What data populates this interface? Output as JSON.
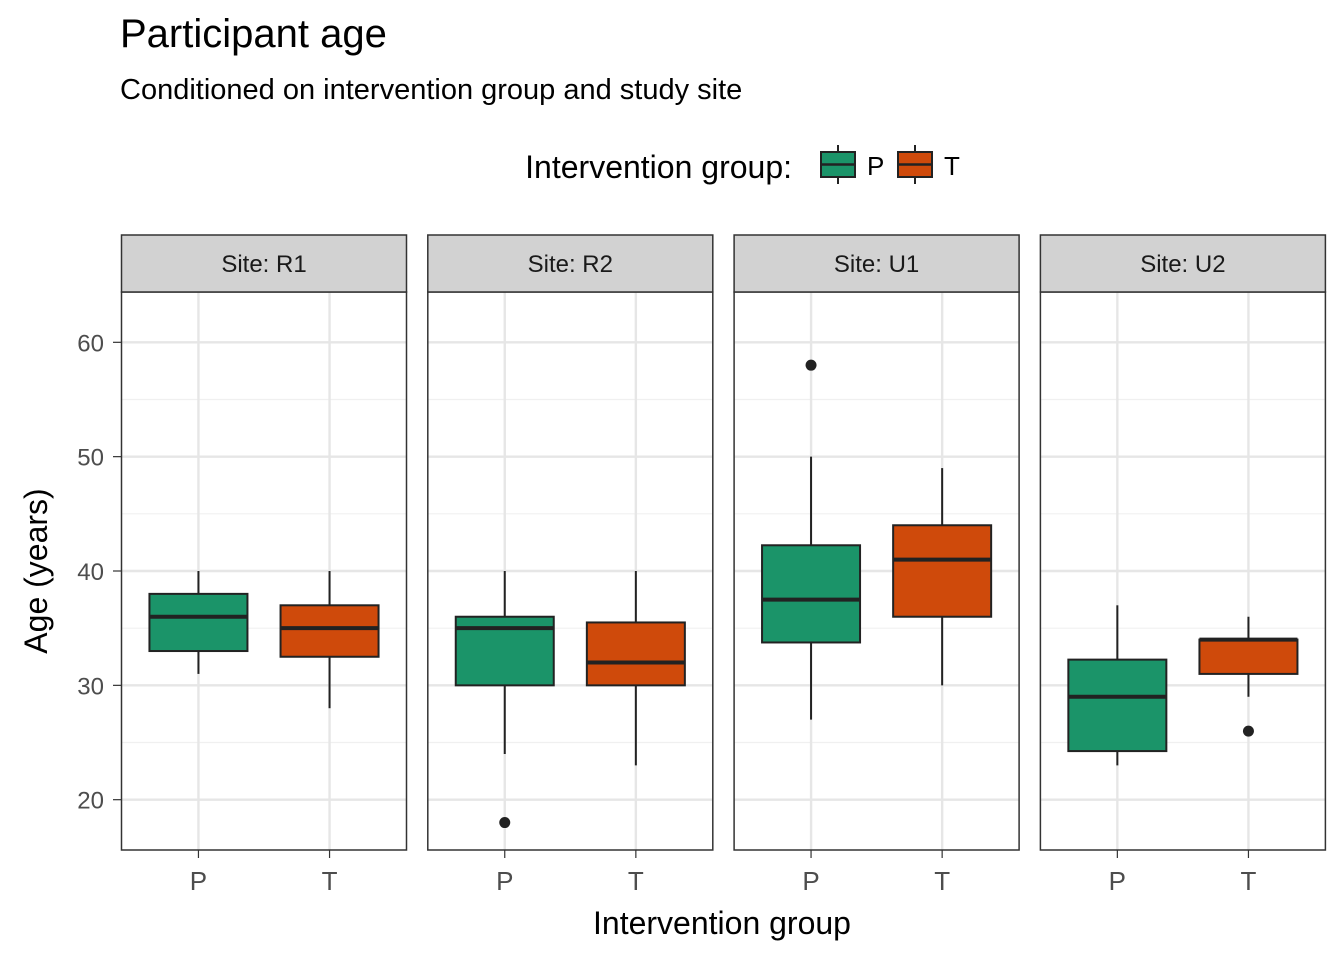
{
  "chart_data": {
    "type": "boxplot",
    "title": "Participant age",
    "subtitle": "Conditioned on intervention group and study site",
    "xlabel": "Intervention group",
    "ylabel": "Age (years)",
    "ylim": [
      15.6,
      64.4
    ],
    "yticks": [
      20,
      30,
      40,
      50,
      60
    ],
    "grid": true,
    "legend": {
      "title": "Intervention group:",
      "position": "top",
      "entries": [
        {
          "name": "P",
          "color": "#1b9469"
        },
        {
          "name": "T",
          "color": "#cf4a0b"
        }
      ]
    },
    "categories": [
      "P",
      "T"
    ],
    "facets": [
      {
        "label": "Site: R1",
        "boxes": [
          {
            "group": "P",
            "min": 31,
            "q1": 33,
            "median": 36,
            "q3": 38,
            "max": 40,
            "outliers": []
          },
          {
            "group": "T",
            "min": 28,
            "q1": 32.5,
            "median": 35,
            "q3": 37,
            "max": 40,
            "outliers": []
          }
        ]
      },
      {
        "label": "Site: R2",
        "boxes": [
          {
            "group": "P",
            "min": 24,
            "q1": 30,
            "median": 35,
            "q3": 36,
            "max": 40,
            "outliers": [
              18
            ]
          },
          {
            "group": "T",
            "min": 23,
            "q1": 30,
            "median": 32,
            "q3": 35.5,
            "max": 40,
            "outliers": []
          }
        ]
      },
      {
        "label": "Site: U1",
        "boxes": [
          {
            "group": "P",
            "min": 27,
            "q1": 33.75,
            "median": 37.5,
            "q3": 42.25,
            "max": 50,
            "outliers": [
              58
            ]
          },
          {
            "group": "T",
            "min": 30,
            "q1": 36,
            "median": 41,
            "q3": 44,
            "max": 49,
            "outliers": []
          }
        ]
      },
      {
        "label": "Site: U2",
        "boxes": [
          {
            "group": "P",
            "min": 23,
            "q1": 24.25,
            "median": 29,
            "q3": 32.25,
            "max": 37,
            "outliers": []
          },
          {
            "group": "T",
            "min": 29,
            "q1": 31,
            "median": 34,
            "q3": 34,
            "max": 36,
            "outliers": [
              26
            ]
          }
        ]
      }
    ]
  }
}
